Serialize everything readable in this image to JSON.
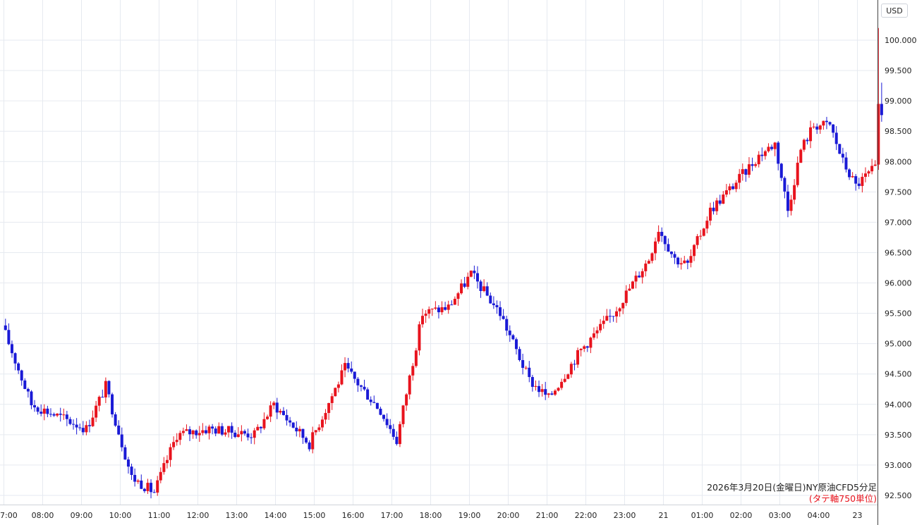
{
  "chart": {
    "currency_label": "USD",
    "caption_title": "2026年3月20日(金曜日)NY原油CFD5分足",
    "caption_note": "(タテ軸750単位)"
  },
  "chart_data": {
    "type": "candlestick",
    "title": "2026年3月20日(金曜日)NY原油CFD5分足",
    "subtitle": "(タテ軸750単位)",
    "ylabel": "USD",
    "ylim": [
      92.4,
      100.5
    ],
    "y_ticks": [
      "92.500",
      "93.000",
      "93.500",
      "94.000",
      "94.500",
      "95.000",
      "95.500",
      "96.000",
      "96.500",
      "97.000",
      "97.500",
      "98.000",
      "98.500",
      "99.000",
      "99.500",
      "100.000"
    ],
    "x_ticks": [
      "7:00",
      "08:00",
      "09:00",
      "10:00",
      "11:00",
      "12:00",
      "13:00",
      "14:00",
      "15:00",
      "16:00",
      "17:00",
      "18:00",
      "19:00",
      "20:00",
      "21:00",
      "22:00",
      "23:00",
      "21",
      "01:00",
      "02:00",
      "03:00",
      "04:00",
      "23"
    ],
    "colors": {
      "up": "#e8131d",
      "down": "#1a1ad6"
    },
    "grid": true,
    "key_points": [
      {
        "x": "07:00",
        "y": 95.3
      },
      {
        "x": "07:45",
        "y": 94.0
      },
      {
        "x": "09:10",
        "y": 93.6
      },
      {
        "x": "09:40",
        "y": 94.3
      },
      {
        "x": "10:20",
        "y": 92.8
      },
      {
        "x": "10:55",
        "y": 92.55
      },
      {
        "x": "11:30",
        "y": 93.5
      },
      {
        "x": "12:20",
        "y": 93.6
      },
      {
        "x": "13:30",
        "y": 93.5
      },
      {
        "x": "14:00",
        "y": 94.0
      },
      {
        "x": "14:55",
        "y": 93.35
      },
      {
        "x": "15:50",
        "y": 94.6
      },
      {
        "x": "16:45",
        "y": 93.9
      },
      {
        "x": "17:10",
        "y": 93.4
      },
      {
        "x": "17:50",
        "y": 95.5
      },
      {
        "x": "18:30",
        "y": 95.6
      },
      {
        "x": "19:05",
        "y": 96.15
      },
      {
        "x": "19:50",
        "y": 95.5
      },
      {
        "x": "20:35",
        "y": 94.4
      },
      {
        "x": "21:05",
        "y": 94.1
      },
      {
        "x": "21:55",
        "y": 94.9
      },
      {
        "x": "22:45",
        "y": 95.5
      },
      {
        "x": "23:40",
        "y": 96.4
      },
      {
        "x": "23:55",
        "y": 96.9
      },
      {
        "x": "00:20",
        "y": 96.4
      },
      {
        "x": "00:40",
        "y": 96.3
      },
      {
        "x": "01:15",
        "y": 97.2
      },
      {
        "x": "01:50",
        "y": 97.6
      },
      {
        "x": "02:30",
        "y": 98.1
      },
      {
        "x": "02:55",
        "y": 98.3
      },
      {
        "x": "03:15",
        "y": 97.2
      },
      {
        "x": "03:35",
        "y": 98.2
      },
      {
        "x": "03:55",
        "y": 98.6
      },
      {
        "x": "04:20",
        "y": 98.6
      },
      {
        "x": "04:40",
        "y": 98.0
      },
      {
        "x": "05:00",
        "y": 97.6
      },
      {
        "x": "05:25",
        "y": 97.85
      },
      {
        "x": "05:35",
        "y": 98.7
      },
      {
        "x": "05:40",
        "y": 98.75
      }
    ]
  }
}
